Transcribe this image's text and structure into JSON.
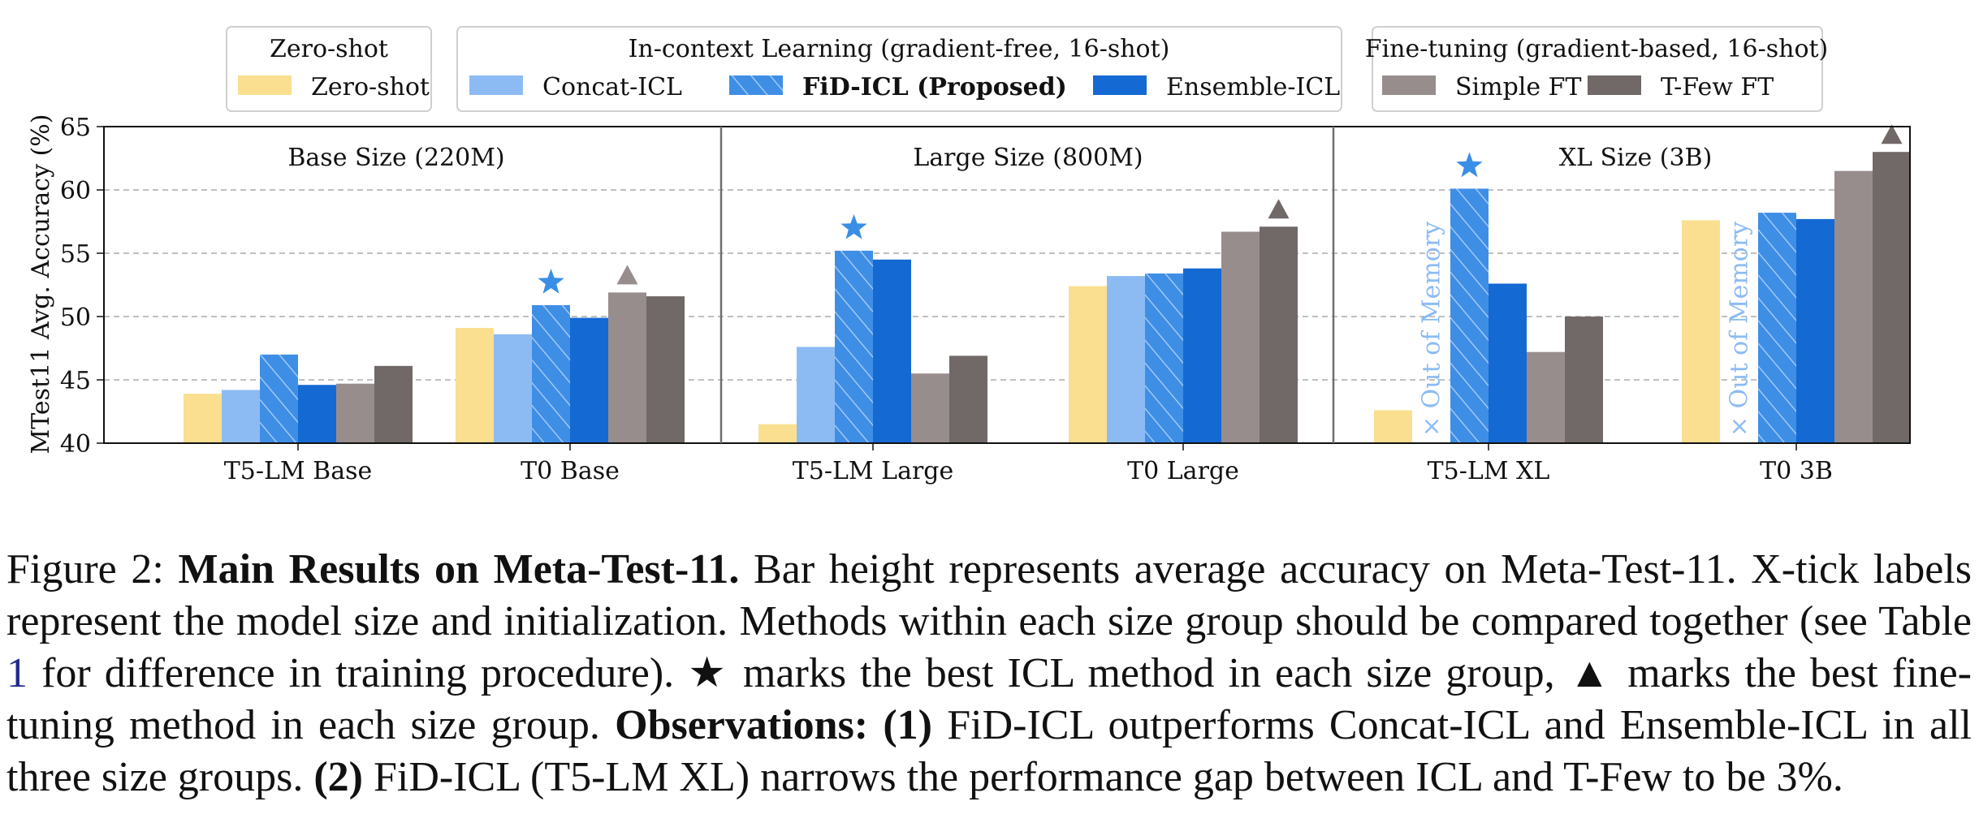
{
  "figure": {
    "ylabel": "MTest11 Avg. Accuracy (%)",
    "legend_groups": [
      {
        "title": "Zero-shot",
        "entries": [
          {
            "series": 0,
            "label": "Zero-shot"
          }
        ]
      },
      {
        "title": "In-context Learning (gradient-free, 16-shot)",
        "entries": [
          {
            "series": 1,
            "label": "Concat-ICL"
          },
          {
            "series": 2,
            "label": "FiD-ICL (Proposed)"
          },
          {
            "series": 3,
            "label": "Ensemble-ICL"
          }
        ]
      },
      {
        "title": "Fine-tuning (gradient-based, 16-shot)",
        "entries": [
          {
            "series": 4,
            "label": "Simple FT"
          },
          {
            "series": 5,
            "label": "T-Few FT"
          }
        ]
      }
    ],
    "oom_label": "× Out of Memory"
  },
  "chart_data": {
    "type": "bar",
    "ylabel": "MTest11 Avg. Accuracy (%)",
    "ylim": [
      40,
      65
    ],
    "yticks": [
      40,
      45,
      50,
      55,
      60,
      65
    ],
    "grid": "horizontal dashed",
    "legend_placement": "top",
    "categories": [
      "T5-LM Base",
      "T0 Base",
      "T5-LM Large",
      "T0 Large",
      "T5-LM XL",
      "T0 3B"
    ],
    "size_groups": [
      {
        "label": "Base Size (220M)",
        "categories": [
          0,
          1
        ]
      },
      {
        "label": "Large Size (800M)",
        "categories": [
          2,
          3
        ]
      },
      {
        "label": "XL Size (3B)",
        "categories": [
          4,
          5
        ]
      }
    ],
    "series": [
      {
        "name": "Zero-shot",
        "color": "#f9df8f",
        "hatch": false,
        "values": [
          43.9,
          49.1,
          41.5,
          52.4,
          42.6,
          57.6
        ]
      },
      {
        "name": "Concat-ICL",
        "color": "#8cbbf3",
        "hatch": false,
        "values": [
          44.2,
          48.6,
          47.6,
          53.2,
          null,
          null
        ]
      },
      {
        "name": "FiD-ICL (Proposed)",
        "color": "#3f8ee6",
        "hatch": true,
        "values": [
          47.0,
          50.9,
          55.2,
          53.4,
          60.1,
          58.2
        ]
      },
      {
        "name": "Ensemble-ICL",
        "color": "#1469d3",
        "hatch": false,
        "values": [
          44.6,
          49.9,
          54.5,
          53.8,
          52.6,
          57.7
        ]
      },
      {
        "name": "Simple FT",
        "color": "#988d8d",
        "hatch": false,
        "values": [
          44.7,
          51.9,
          45.5,
          56.7,
          47.2,
          61.5
        ]
      },
      {
        "name": "T-Few FT",
        "color": "#716868",
        "hatch": false,
        "values": [
          46.1,
          51.6,
          46.9,
          57.1,
          50.0,
          63.0
        ]
      }
    ],
    "out_of_memory": [
      {
        "series": 1,
        "category": 4
      },
      {
        "series": 1,
        "category": 5
      }
    ],
    "markers": [
      {
        "symbol": "star",
        "series": 2,
        "category": 1,
        "color": "#3a8ee6"
      },
      {
        "symbol": "triangle",
        "series": 4,
        "category": 1,
        "color": "#988d8d"
      },
      {
        "symbol": "star",
        "series": 2,
        "category": 2,
        "color": "#3a8ee6"
      },
      {
        "symbol": "triangle",
        "series": 5,
        "category": 3,
        "color": "#716868"
      },
      {
        "symbol": "star",
        "series": 2,
        "category": 4,
        "color": "#3a8ee6"
      },
      {
        "symbol": "triangle",
        "series": 5,
        "category": 5,
        "color": "#716868"
      }
    ]
  },
  "caption": {
    "prefix": "Figure 2: ",
    "title": "Main Results on Meta-Test-11.",
    "text1": " Bar height represents average accuracy on Meta-Test-11. X-tick labels represent the model size and initialization. Methods within each size group should be compared together (see Table ",
    "table_ref": "1",
    "text2": " for difference in training procedure). ★ marks the best ICL method in each size group, ▲ marks the best fine-tuning method in each size group. ",
    "obs_label": "Observations:",
    "obs1_num": " (1)",
    "obs1_text": " FiD-ICL outperforms Concat-ICL and Ensemble-ICL in all three size groups. ",
    "obs2_num": "(2)",
    "obs2_text": " FiD-ICL (T5-LM XL) narrows the performance gap between ICL and T-Few to be 3%."
  }
}
